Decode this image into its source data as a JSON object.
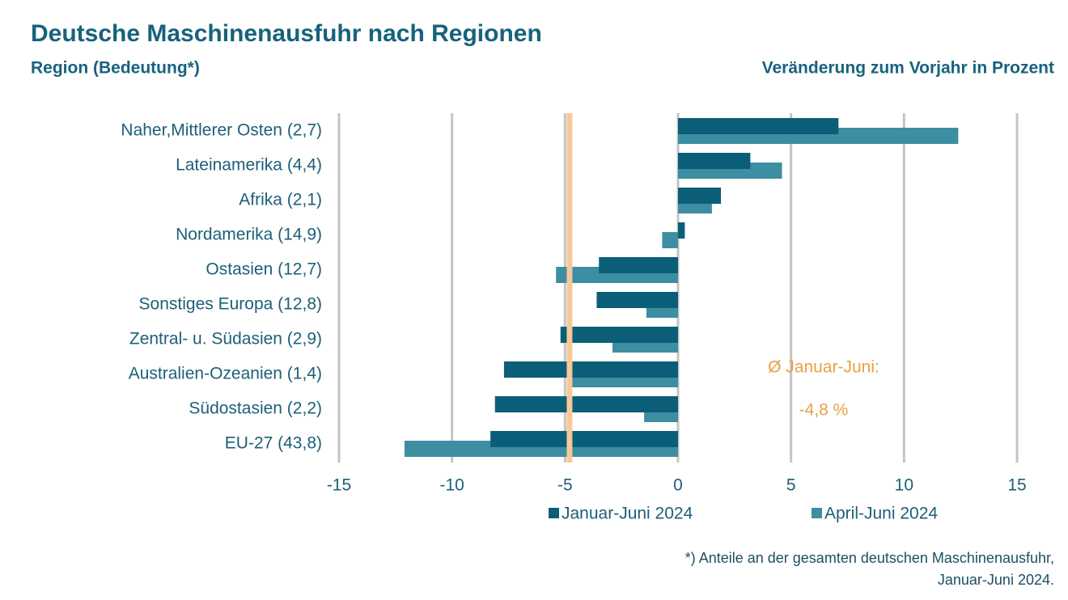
{
  "chart_data": {
    "type": "bar",
    "orientation": "horizontal",
    "title": "Deutsche Maschinenausfuhr nach Regionen",
    "subtitle_left": "Region (Bedeutung*)",
    "subtitle_right": "Veränderung zum Vorjahr in Prozent",
    "categories": [
      "Naher,Mittlerer Osten (2,7)",
      "Lateinamerika (4,4)",
      "Afrika (2,1)",
      "Nordamerika (14,9)",
      "Ostasien (12,7)",
      "Sonstiges Europa (12,8)",
      "Zentral- u. Südasien (2,9)",
      "Australien-Ozeanien (1,4)",
      "Südostasien (2,2)",
      "EU-27 (43,8)"
    ],
    "series": [
      {
        "name": "Januar-Juni 2024",
        "color": "#0b5e77",
        "values": [
          7.1,
          3.2,
          1.9,
          0.3,
          -3.5,
          -3.6,
          -5.2,
          -7.7,
          -8.1,
          -8.3
        ]
      },
      {
        "name": "April-Juni 2024",
        "color": "#3d8ea2",
        "values": [
          12.4,
          4.6,
          1.5,
          -0.7,
          -5.4,
          -1.4,
          -2.9,
          -4.7,
          -1.5,
          -12.1
        ]
      }
    ],
    "xlim": [
      -15,
      15
    ],
    "xticks": [
      -15,
      -10,
      -5,
      0,
      5,
      10,
      15
    ],
    "grid": true,
    "average_label": "Ø Januar-Juni:",
    "average": {
      "value": -4.8,
      "label": "-4,8 %"
    },
    "average_color": "#f7c99a",
    "footnote": [
      "*) Anteile an der gesamten deutschen Maschinenausfuhr,",
      "Januar-Juni 2024."
    ]
  }
}
